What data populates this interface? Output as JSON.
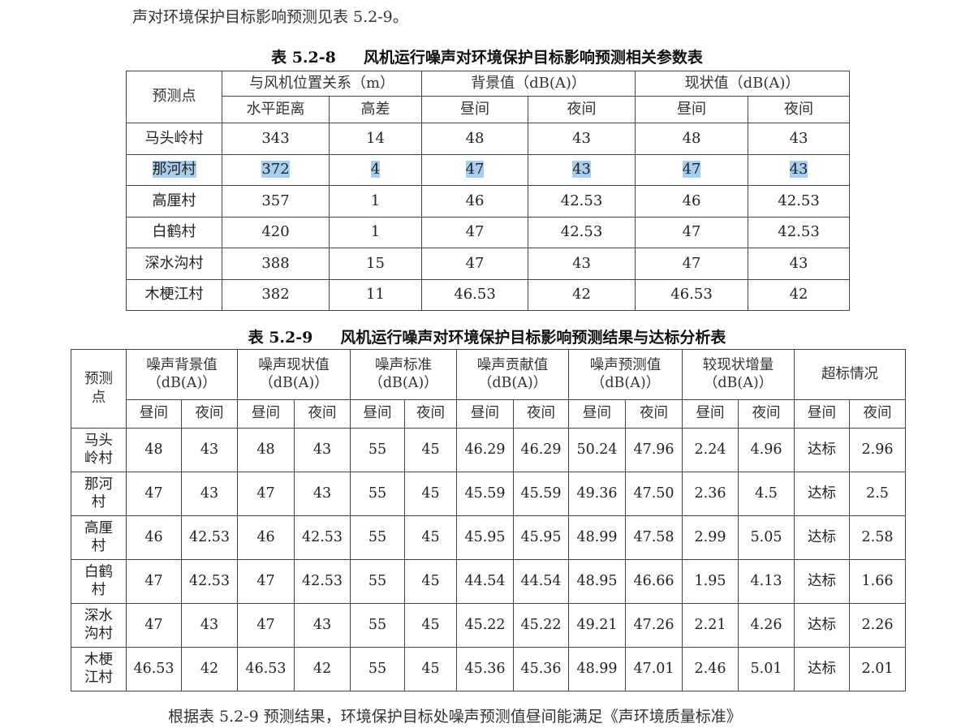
{
  "intro_text": "声对环境保护目标影响预测见表 5.2-9。",
  "table1": {
    "number": "表 5.2-8",
    "title": "风机运行噪声对环境保护目标影响预测相关参数表",
    "header": {
      "point": "预测点",
      "position": "与风机位置关系（m）",
      "background": "背景值（dB(A)）",
      "current": "现状值（dB(A)）",
      "sub": [
        "水平距离",
        "高差",
        "昼间",
        "夜间",
        "昼间",
        "夜间"
      ]
    },
    "highlighted_row": "那河村",
    "highlight_color": "#a8cdee",
    "rows": [
      [
        "马头岭村",
        "343",
        "14",
        "48",
        "43",
        "48",
        "43"
      ],
      [
        "那河村",
        "372",
        "4",
        "47",
        "43",
        "47",
        "43"
      ],
      [
        "高厘村",
        "357",
        "1",
        "46",
        "42.53",
        "46",
        "42.53"
      ],
      [
        "白鹤村",
        "420",
        "1",
        "47",
        "42.53",
        "47",
        "42.53"
      ],
      [
        "深水沟村",
        "388",
        "15",
        "47",
        "43",
        "47",
        "43"
      ],
      [
        "木梗江村",
        "382",
        "11",
        "46.53",
        "42",
        "46.53",
        "42"
      ]
    ]
  },
  "table2": {
    "number": "表 5.2-9",
    "title": "风机运行噪声对环境保护目标影响预测结果与达标分析表",
    "header": {
      "point": "预测点",
      "groups": [
        {
          "name": "噪声背景值",
          "unit": "（dB(A)）"
        },
        {
          "name": "噪声现状值",
          "unit": "（dB(A)）"
        },
        {
          "name": "噪声标准",
          "unit": "（dB(A)）"
        },
        {
          "name": "噪声贡献值",
          "unit": "（dB(A)）"
        },
        {
          "name": "噪声预测值",
          "unit": "（dB(A)）"
        },
        {
          "name": "较现状增量",
          "unit": "（dB(A)）"
        },
        {
          "name": "超标情况",
          "unit": ""
        }
      ],
      "day": "昼间",
      "night": "夜间"
    },
    "rows": [
      [
        "马头岭村",
        "48",
        "43",
        "48",
        "43",
        "55",
        "45",
        "46.29",
        "46.29",
        "50.24",
        "47.96",
        "2.24",
        "4.96",
        "达标",
        "2.96"
      ],
      [
        "那河村",
        "47",
        "43",
        "47",
        "43",
        "55",
        "45",
        "45.59",
        "45.59",
        "49.36",
        "47.50",
        "2.36",
        "4.5",
        "达标",
        "2.5"
      ],
      [
        "高厘村",
        "46",
        "42.53",
        "46",
        "42.53",
        "55",
        "45",
        "45.95",
        "45.95",
        "48.99",
        "47.58",
        "2.99",
        "5.05",
        "达标",
        "2.58"
      ],
      [
        "白鹤村",
        "47",
        "42.53",
        "47",
        "42.53",
        "55",
        "45",
        "44.54",
        "44.54",
        "48.95",
        "46.66",
        "1.95",
        "4.13",
        "达标",
        "1.66"
      ],
      [
        "深水沟村",
        "47",
        "43",
        "47",
        "43",
        "55",
        "45",
        "45.22",
        "45.22",
        "49.21",
        "47.26",
        "2.21",
        "4.26",
        "达标",
        "2.26"
      ],
      [
        "木梗江村",
        "46.53",
        "42",
        "46.53",
        "42",
        "55",
        "45",
        "45.36",
        "45.36",
        "48.99",
        "47.01",
        "2.46",
        "5.01",
        "达标",
        "2.01"
      ]
    ]
  },
  "outro_text": "根据表 5.2-9 预测结果，环境保护目标处噪声预测值昼间能满足《声环境质量标准》"
}
